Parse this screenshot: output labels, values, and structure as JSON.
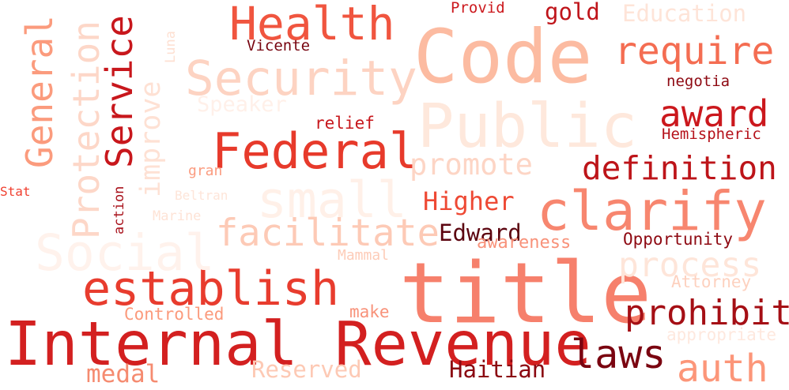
{
  "words": [
    {
      "text": "Code",
      "color": "#fcbba1"
    },
    {
      "text": "title",
      "color": "#f6806c"
    },
    {
      "text": "Internal Revenue",
      "color": "#d32020"
    },
    {
      "text": "Public",
      "color": "#fee8dc"
    },
    {
      "text": "Security",
      "color": "#fdd3c2"
    },
    {
      "text": "Federal",
      "color": "#e73a2b"
    },
    {
      "text": "clarify",
      "color": "#f7866f"
    },
    {
      "text": "establish",
      "color": "#e83c2e"
    },
    {
      "text": "Health",
      "color": "#f0553f"
    },
    {
      "text": "Social",
      "color": "#fff2ec"
    },
    {
      "text": "small",
      "color": "#fff0e8"
    },
    {
      "text": "facilitate",
      "color": "#fdcab6"
    },
    {
      "text": "require",
      "color": "#f46d52"
    },
    {
      "text": "award",
      "color": "#cb181d"
    },
    {
      "text": "definition",
      "color": "#bd1419"
    },
    {
      "text": "promote",
      "color": "#fdd5c5"
    },
    {
      "text": "prohibit",
      "color": "#a50f15"
    },
    {
      "text": "laws",
      "color": "#7a0410"
    },
    {
      "text": "auth",
      "color": "#fc9679"
    },
    {
      "text": "process",
      "color": "#fee5d9"
    },
    {
      "text": "General",
      "color": "#fb9b7d"
    },
    {
      "text": "Protection",
      "color": "#fdd7c8"
    },
    {
      "text": "Service",
      "color": "#c8171c"
    },
    {
      "text": "improve",
      "color": "#fee1d4"
    },
    {
      "text": "Higher",
      "color": "#ee4934"
    },
    {
      "text": "Edward",
      "color": "#5c0510"
    },
    {
      "text": "Haitian",
      "color": "#8b0811"
    },
    {
      "text": "Reserved",
      "color": "#fdc9b4"
    },
    {
      "text": "medal",
      "color": "#f58b70"
    },
    {
      "text": "gold",
      "color": "#bf141a"
    },
    {
      "text": "Education",
      "color": "#fee4d8"
    },
    {
      "text": "Speaker",
      "color": "#fff0e9"
    },
    {
      "text": "Opportunity",
      "color": "#8e0912"
    },
    {
      "text": "awareness",
      "color": "#f8927a"
    },
    {
      "text": "Attorney",
      "color": "#fdd1bf"
    },
    {
      "text": "appropriate",
      "color": "#fee8de"
    },
    {
      "text": "negotia",
      "color": "#8e0912"
    },
    {
      "text": "Hemispheric",
      "color": "#b5121b"
    },
    {
      "text": "relief",
      "color": "#c7171c"
    },
    {
      "text": "Vicente",
      "color": "#77040f"
    },
    {
      "text": "Provid",
      "color": "#cc191e"
    },
    {
      "text": "Controlled",
      "color": "#fb9a7c"
    },
    {
      "text": "make",
      "color": "#f8927a"
    },
    {
      "text": "Mammal",
      "color": "#fdccb8"
    },
    {
      "text": "Marine",
      "color": "#fee3d6"
    },
    {
      "text": "Beltran",
      "color": "#fee5d9"
    },
    {
      "text": "action",
      "color": "#a8101a"
    },
    {
      "text": "gran",
      "color": "#fb9c80"
    },
    {
      "text": "Stat",
      "color": "#f03f2f"
    },
    {
      "text": "Luna",
      "color": "#fee0d2"
    }
  ]
}
